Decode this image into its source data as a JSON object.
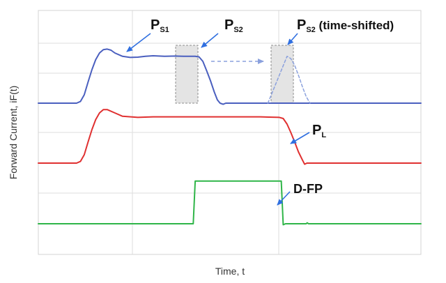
{
  "chart_data": {
    "type": "line",
    "xlabel": "Time, t",
    "ylabel": "Forward Current, iF(t)",
    "xlim": [
      0,
      100
    ],
    "series": [
      {
        "name": "PS1 / PS2",
        "color": "#4a5fbf",
        "points": [
          [
            0,
            0
          ],
          [
            10,
            0
          ],
          [
            11,
            3
          ],
          [
            12,
            15
          ],
          [
            13,
            38
          ],
          [
            14,
            60
          ],
          [
            15,
            78
          ],
          [
            16,
            90
          ],
          [
            17,
            96
          ],
          [
            18,
            97
          ],
          [
            19,
            95
          ],
          [
            20,
            90
          ],
          [
            22,
            84
          ],
          [
            24,
            82
          ],
          [
            26,
            82.5
          ],
          [
            28,
            84
          ],
          [
            30,
            85
          ],
          [
            33,
            84
          ],
          [
            36,
            84.5
          ],
          [
            38,
            84
          ],
          [
            40,
            84
          ],
          [
            41,
            84
          ],
          [
            42,
            83
          ],
          [
            43,
            75
          ],
          [
            44,
            58
          ],
          [
            45,
            40
          ],
          [
            46,
            20
          ],
          [
            46.8,
            6
          ],
          [
            47.5,
            0
          ],
          [
            48.3,
            -2
          ],
          [
            49,
            0
          ],
          [
            100,
            0
          ]
        ]
      },
      {
        "name": "PS2 (time-shifted)",
        "color": "#8aa0dd",
        "dashed": true,
        "points": [
          [
            60,
            0
          ],
          [
            65,
            84
          ],
          [
            66,
            80
          ],
          [
            67,
            68
          ],
          [
            68,
            50
          ],
          [
            69,
            30
          ],
          [
            70,
            12
          ],
          [
            71,
            0
          ]
        ]
      },
      {
        "name": "PL",
        "color": "#e03030",
        "points": [
          [
            0,
            0
          ],
          [
            10,
            0
          ],
          [
            11,
            3
          ],
          [
            12,
            15
          ],
          [
            13,
            38
          ],
          [
            14,
            60
          ],
          [
            15,
            78
          ],
          [
            16,
            90
          ],
          [
            17,
            96
          ],
          [
            18,
            96
          ],
          [
            20,
            90
          ],
          [
            22,
            84
          ],
          [
            26,
            82
          ],
          [
            30,
            83
          ],
          [
            35,
            83
          ],
          [
            40,
            83
          ],
          [
            50,
            83
          ],
          [
            58,
            83
          ],
          [
            63,
            82
          ],
          [
            64,
            80
          ],
          [
            65,
            70
          ],
          [
            66,
            55
          ],
          [
            67,
            38
          ],
          [
            68,
            20
          ],
          [
            69,
            6
          ],
          [
            69.6,
            -2
          ],
          [
            70.2,
            0
          ],
          [
            100,
            0
          ]
        ]
      },
      {
        "name": "D-FP",
        "color": "#2fb548",
        "points": [
          [
            0,
            0
          ],
          [
            40.5,
            0
          ],
          [
            41,
            90
          ],
          [
            63.5,
            90
          ],
          [
            64,
            -2
          ],
          [
            64.6,
            0
          ],
          [
            70,
            0
          ],
          [
            70.3,
            2
          ],
          [
            70.6,
            0
          ],
          [
            100,
            0
          ]
        ]
      }
    ],
    "annotations": [
      {
        "id": "ps1",
        "main": "P",
        "sub": "S1",
        "suffix": ""
      },
      {
        "id": "ps2",
        "main": "P",
        "sub": "S2",
        "suffix": ""
      },
      {
        "id": "ps2-shifted",
        "main": "P",
        "sub": "S2",
        "suffix": " (time-shifted)"
      },
      {
        "id": "pl",
        "main": "P",
        "sub": "L",
        "suffix": ""
      },
      {
        "id": "dfp",
        "main": "D-FP",
        "sub": "",
        "suffix": ""
      }
    ],
    "grid": true
  }
}
